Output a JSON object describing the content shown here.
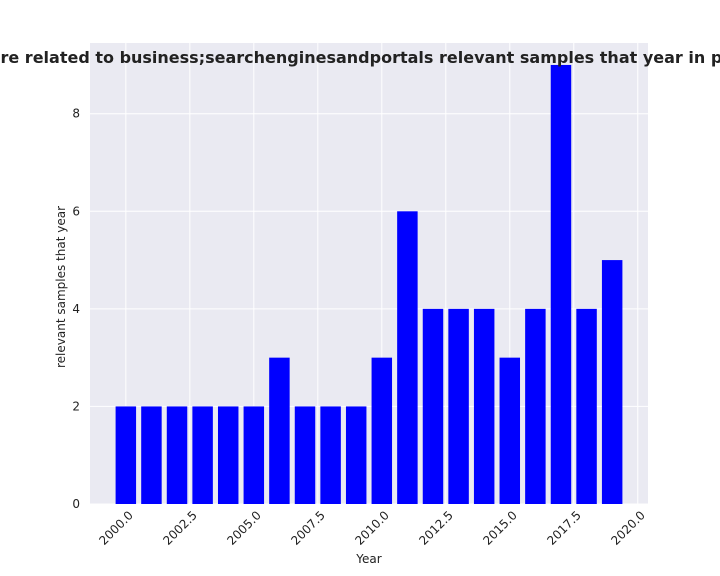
{
  "chart_data": {
    "type": "bar",
    "title": "Categories are related to business;searchenginesandportals relevant samples that year in privacy policies",
    "xlabel": "Year",
    "ylabel": "relevant samples that year",
    "x": [
      2000,
      2001,
      2002,
      2003,
      2004,
      2005,
      2006,
      2007,
      2008,
      2009,
      2010,
      2011,
      2012,
      2013,
      2014,
      2015,
      2016,
      2017,
      2018,
      2019
    ],
    "values": [
      2,
      2,
      2,
      2,
      2,
      2,
      3,
      2,
      2,
      2,
      3,
      6,
      4,
      4,
      4,
      3,
      4,
      9,
      4,
      5
    ],
    "xlim": [
      1998.6,
      2020.4
    ],
    "ylim": [
      0,
      9.45
    ],
    "xticks": [
      2000.0,
      2002.5,
      2005.0,
      2007.5,
      2010.0,
      2012.5,
      2015.0,
      2017.5,
      2020.0
    ],
    "xtick_labels": [
      "2000.0",
      "2002.5",
      "2005.0",
      "2007.5",
      "2010.0",
      "2012.5",
      "2015.0",
      "2017.5",
      "2020.0"
    ],
    "yticks": [
      0,
      2,
      4,
      6,
      8
    ],
    "ytick_labels": [
      "0",
      "2",
      "4",
      "6",
      "8"
    ],
    "bar_color": "#0000ff",
    "plot_background": "#eaeaf2",
    "grid": true,
    "grid_color": "#ffffff"
  }
}
